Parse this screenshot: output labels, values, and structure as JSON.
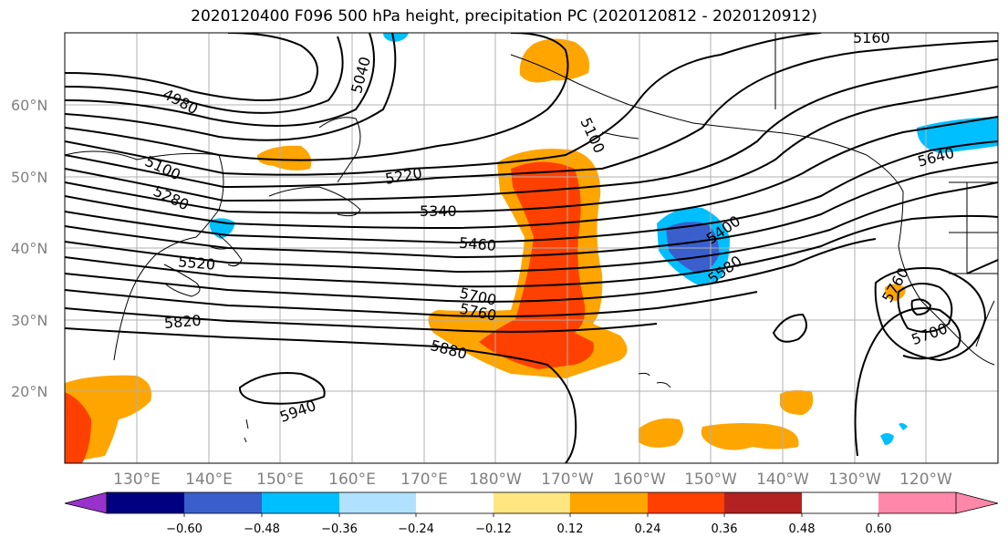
{
  "title": "2020120400 F096 500 hPa height, precipitation PC (2020120812 - 2020120912)",
  "lat_labels": [
    "60°N",
    "50°N",
    "40°N",
    "30°N",
    "20°N"
  ],
  "lon_labels": [
    "130°E",
    "140°E",
    "150°E",
    "160°E",
    "170°E",
    "180°W",
    "170°W",
    "160°W",
    "150°W",
    "140°W",
    "130°W",
    "120°W"
  ],
  "contour_labels": [
    "4980",
    "5040",
    "5100",
    "5160",
    "5100",
    "5100",
    "5220",
    "5280",
    "5340",
    "5400",
    "5460",
    "5520",
    "5580",
    "5640",
    "5700",
    "5760",
    "5700",
    "5760",
    "5700",
    "5820",
    "5880",
    "5940"
  ],
  "colorbar": {
    "ticks": [
      "−0.60",
      "−0.48",
      "−0.36",
      "−0.24",
      "−0.12",
      "0.12",
      "0.24",
      "0.36",
      "0.48",
      "0.60"
    ],
    "colors": [
      "#9932cc",
      "#000080",
      "#3a5fcd",
      "#00bfff",
      "#b0e2ff",
      "#ffffff",
      "#ffe680",
      "#ffa500",
      "#ff4000",
      "#b22222",
      "#ff88aa"
    ]
  }
}
